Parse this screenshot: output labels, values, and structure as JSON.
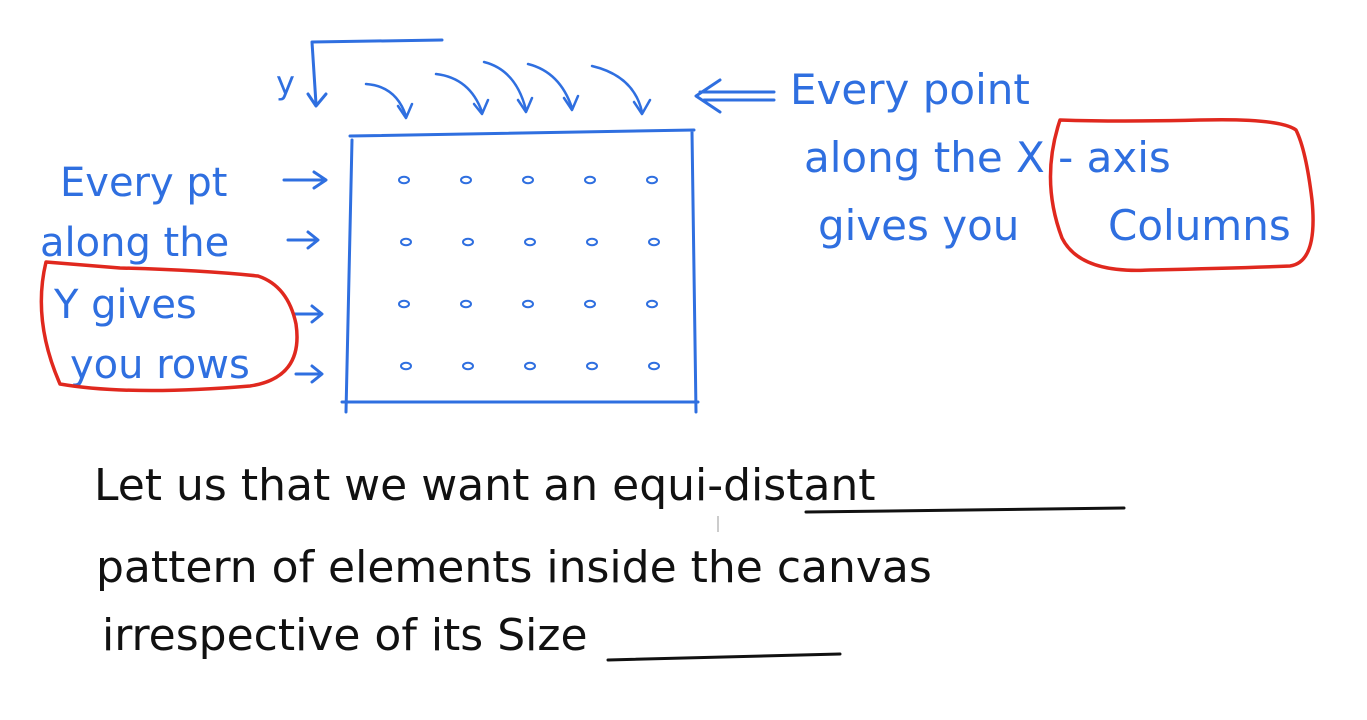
{
  "notes": {
    "y_label": "y",
    "right_note": [
      "Every point",
      "along the X - axis",
      "gives you",
      "Columns"
    ],
    "left_note": [
      "Every pt",
      "along the",
      "Y gives",
      "you rows"
    ],
    "bottom_text": [
      "Let us that we want an equi-distant",
      "pattern of elements inside the canvas",
      "irrespective of its Size"
    ]
  },
  "grid": {
    "rows": 4,
    "cols": 5
  },
  "colors": {
    "ink_blue": "#2f6fe0",
    "ink_red": "#e0281e",
    "ink_black": "#111111"
  }
}
